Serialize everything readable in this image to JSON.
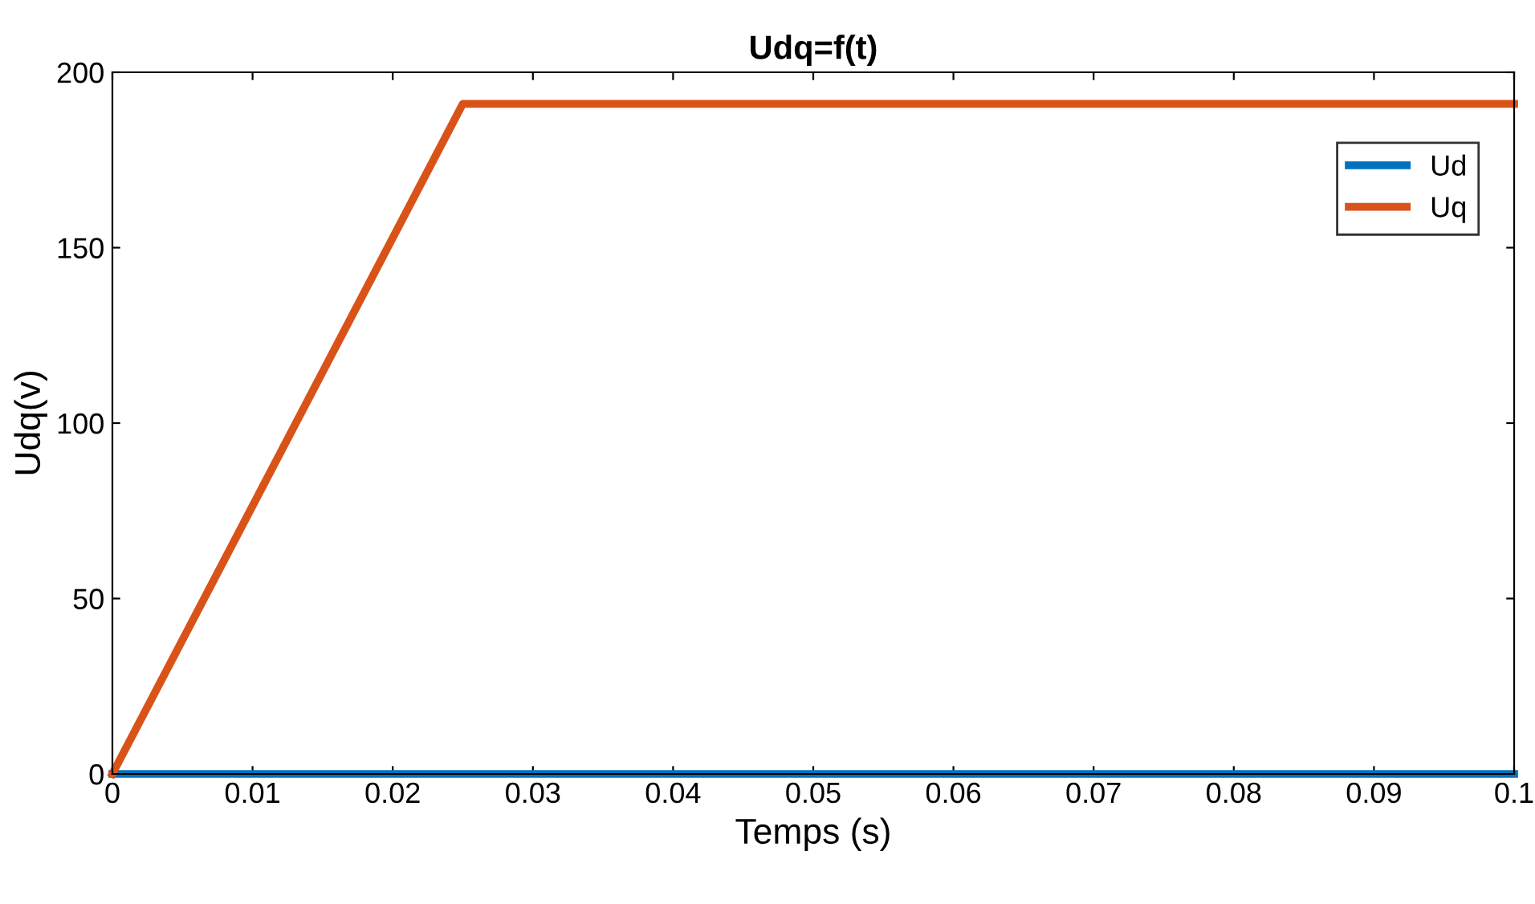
{
  "chart_data": {
    "type": "line",
    "title": "Udq=f(t)",
    "xlabel": "Temps (s)",
    "ylabel": "Udq(v)",
    "series": [
      {
        "name": "Ud",
        "color": "#0072bd",
        "x": [
          0,
          0.1
        ],
        "values": [
          0,
          0
        ]
      },
      {
        "name": "Uq",
        "color": "#d95319",
        "x": [
          0,
          0.025,
          0.1
        ],
        "values": [
          0,
          191,
          191
        ]
      }
    ],
    "xlim": [
      0,
      0.1
    ],
    "xticks": [
      0,
      0.01,
      0.02,
      0.03,
      0.04,
      0.05,
      0.06,
      0.07,
      0.08,
      0.09,
      0.1
    ],
    "ylim": [
      0,
      200
    ],
    "yticks": [
      0,
      50,
      100,
      150,
      200
    ],
    "grid": false,
    "legend": "top right",
    "marker": "none",
    "line_style": "solid"
  }
}
